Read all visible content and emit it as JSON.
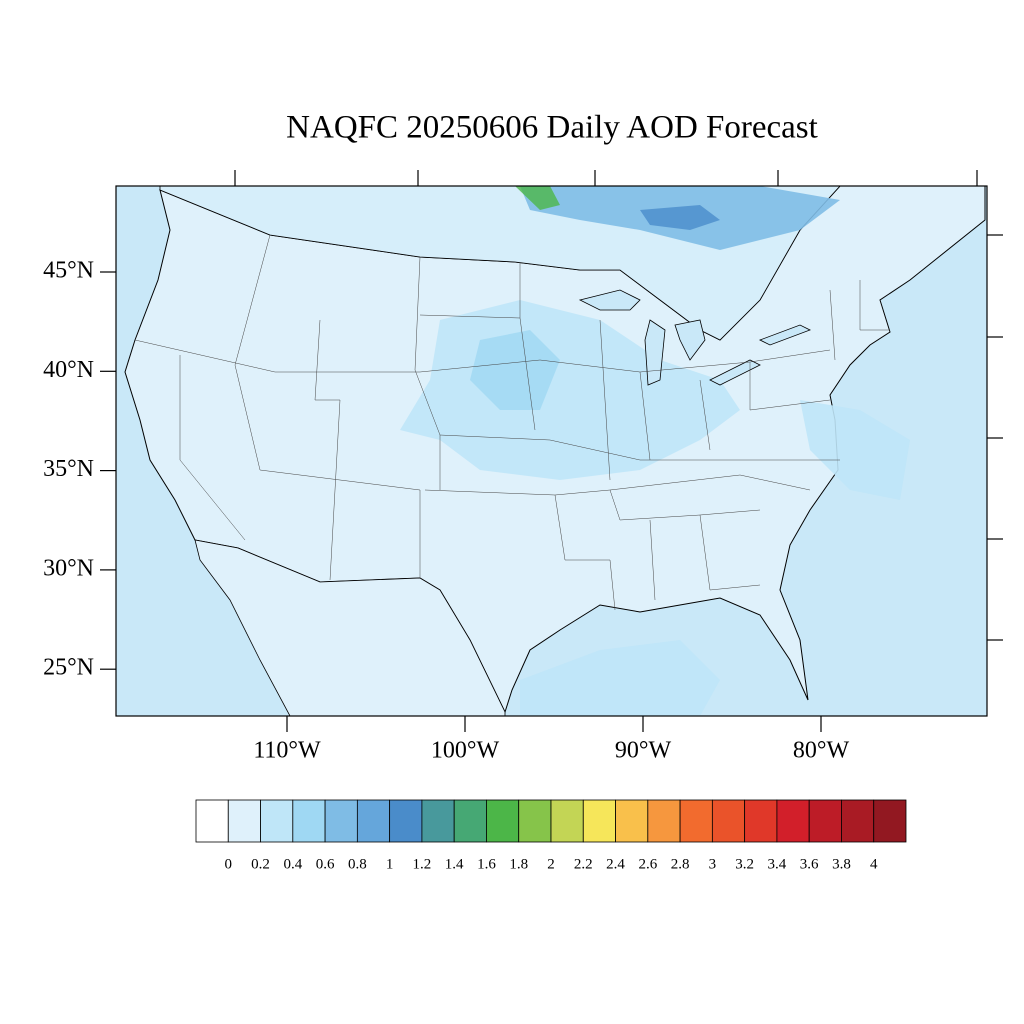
{
  "map": {
    "title": "NAQFC 20250606 Daily AOD Forecast",
    "lat_ticks": [
      {
        "value": 45,
        "label": "45°N"
      },
      {
        "value": 40,
        "label": "40°N"
      },
      {
        "value": 35,
        "label": "35°N"
      },
      {
        "value": 30,
        "label": "30°N"
      },
      {
        "value": 25,
        "label": "25°N"
      }
    ],
    "lon_ticks": [
      {
        "value": -110,
        "label": "110°W"
      },
      {
        "value": -100,
        "label": "100°W"
      },
      {
        "value": -90,
        "label": "90°W"
      },
      {
        "value": -80,
        "label": "80°W"
      }
    ],
    "colorbar": {
      "levels": [
        0,
        0.2,
        0.4,
        0.6,
        0.8,
        1,
        1.2,
        1.4,
        1.6,
        1.8,
        2,
        2.2,
        2.4,
        2.6,
        2.8,
        3,
        3.2,
        3.4,
        3.6,
        3.8,
        4
      ],
      "colors": [
        "#ffffff",
        "#dff1fb",
        "#bfe6f8",
        "#9fd8f3",
        "#7fbce5",
        "#65a6db",
        "#4a8cca",
        "#48999c",
        "#46a874",
        "#4cb648",
        "#86c44a",
        "#c3d555",
        "#f6e65a",
        "#f9c04b",
        "#f6973e",
        "#f26b2e",
        "#ea532a",
        "#e03829",
        "#d21f2a",
        "#bd1c27",
        "#a91b24",
        "#921821"
      ]
    }
  }
}
